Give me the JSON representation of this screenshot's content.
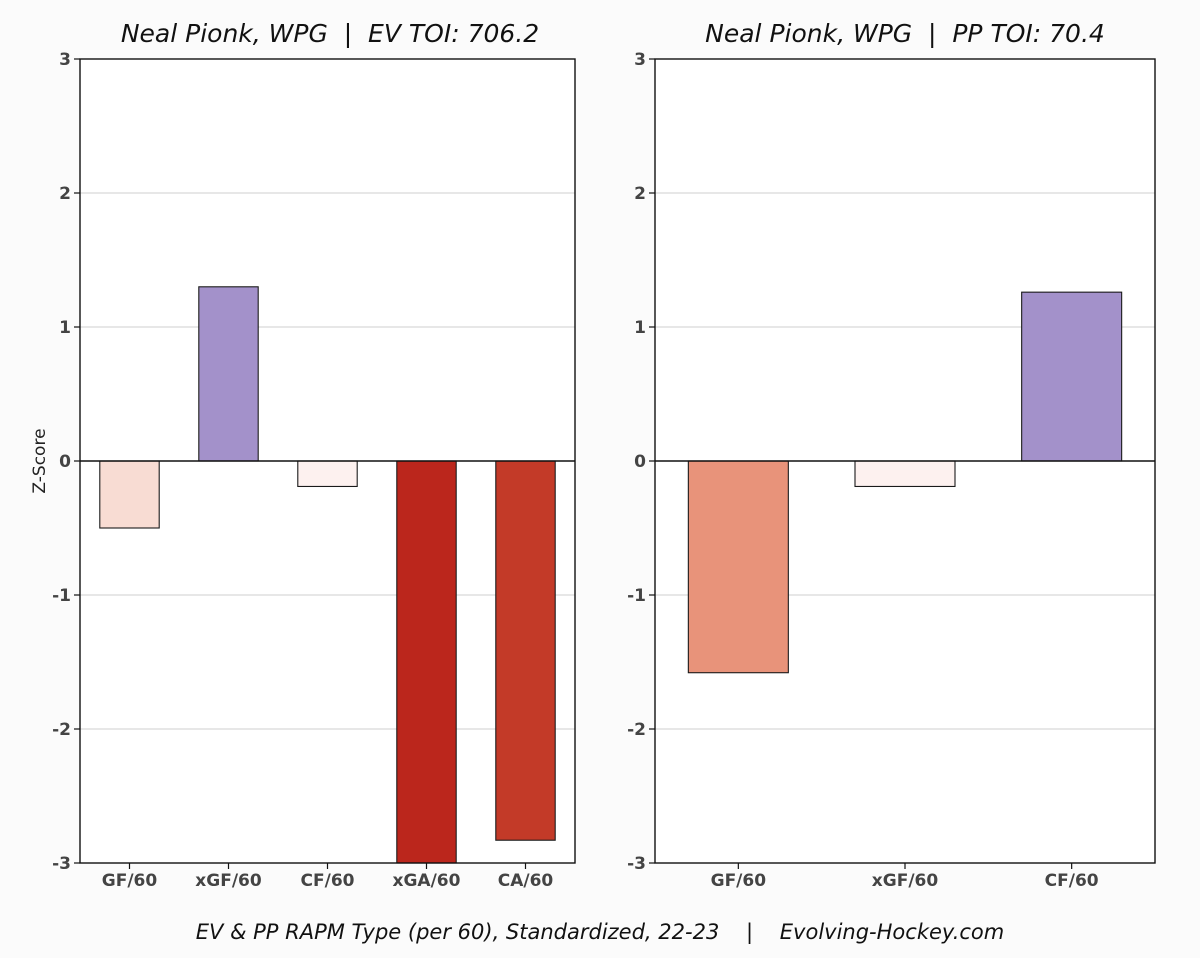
{
  "footer": "EV & PP RAPM Type (per 60), Standardized, 22-23    |    Evolving-Hockey.com",
  "chart_data": [
    {
      "type": "bar",
      "title": "Neal Pionk, WPG  |  EV TOI: 706.2",
      "ylabel": "Z-Score",
      "ylim": [
        -3,
        3
      ],
      "yticks": [
        -3,
        -2,
        -1,
        0,
        1,
        2,
        3
      ],
      "grid": true,
      "categories": [
        "GF/60",
        "xGF/60",
        "CF/60",
        "xGA/60",
        "CA/60"
      ],
      "values": [
        -0.5,
        1.3,
        -0.19,
        -3.0,
        -2.83
      ],
      "colors": [
        "#f8dcd3",
        "#a391ca",
        "#fdf1ef",
        "#bb261c",
        "#c33a28"
      ]
    },
    {
      "type": "bar",
      "title": "Neal Pionk, WPG  |  PP TOI: 70.4",
      "ylabel": "",
      "ylim": [
        -3,
        3
      ],
      "yticks": [
        -3,
        -2,
        -1,
        0,
        1,
        2,
        3
      ],
      "grid": true,
      "categories": [
        "GF/60",
        "xGF/60",
        "CF/60"
      ],
      "values": [
        -1.58,
        -0.19,
        1.26
      ],
      "colors": [
        "#e8937a",
        "#fdf1ef",
        "#a391ca"
      ]
    }
  ]
}
